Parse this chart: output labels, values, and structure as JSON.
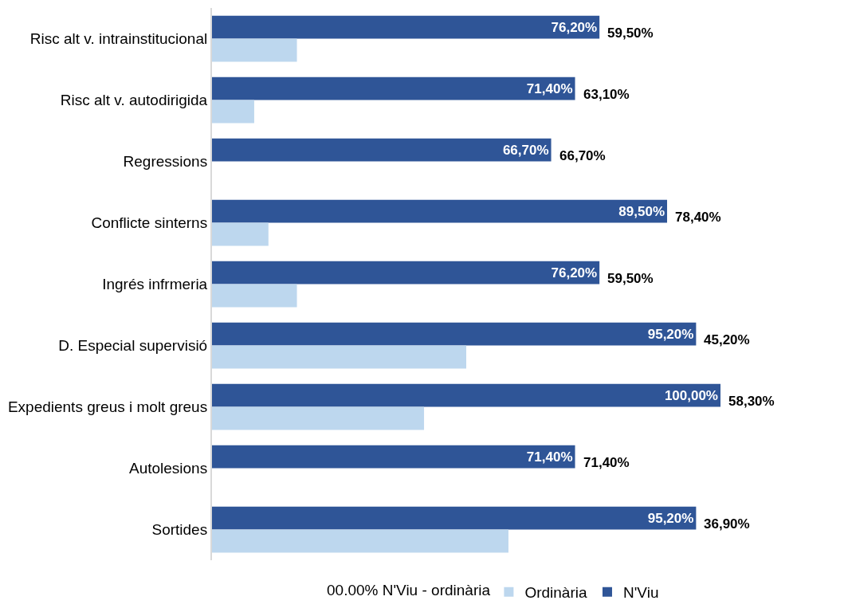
{
  "chart_data": {
    "type": "bar",
    "orientation": "horizontal",
    "tick_labels": "y",
    "legend": "bottom",
    "categories": [
      "Risc alt v. intrainstitucional",
      "Risc alt v. autodirigida",
      "Regressions",
      "Conflicte sinterns",
      "Ingrés infrmeria",
      "D. Especial supervisió",
      "Expedients greus i molt greus",
      "Autolesions",
      "Sortides"
    ],
    "series": [
      {
        "name": "N'Viu",
        "color": "#2f5597",
        "values": [
          76.2,
          71.4,
          66.7,
          89.5,
          76.2,
          95.2,
          100.0,
          71.4,
          95.2
        ],
        "value_labels": [
          "76,20%",
          "71,40%",
          "66,70%",
          "89,50%",
          "76,20%",
          "95,20%",
          "100,00%",
          "71,40%",
          "95,20%"
        ]
      },
      {
        "name": "Ordinària",
        "color": "#bdd7ee",
        "values": [
          16.7,
          8.3,
          0,
          11.1,
          16.7,
          50.0,
          41.7,
          0,
          58.3
        ]
      }
    ],
    "annotations": [
      {
        "text": "59,50%",
        "x": 76.2,
        "y": "Risc alt v. intrainstitucional"
      },
      {
        "text": "63,10%",
        "x": 71.4,
        "y": "Risc alt v. autodirigida"
      },
      {
        "text": "66,70%",
        "x": 66.7,
        "y": "Regressions"
      },
      {
        "text": "78,40%",
        "x": 89.5,
        "y": "Conflicte sinterns"
      },
      {
        "text": "59,50%",
        "x": 76.2,
        "y": "Ingrés infrmeria"
      },
      {
        "text": "45,20%",
        "x": 95.2,
        "y": "D. Especial supervisió"
      },
      {
        "text": "58,30%",
        "x": 100.0,
        "y": "Expedients greus i molt greus"
      },
      {
        "text": "71,40%",
        "x": 71.4,
        "y": "Autolesions"
      },
      {
        "text": "36,90%",
        "x": 95.2,
        "y": "Sortides"
      },
      "00.00% N'Viu - ordinària"
    ]
  }
}
